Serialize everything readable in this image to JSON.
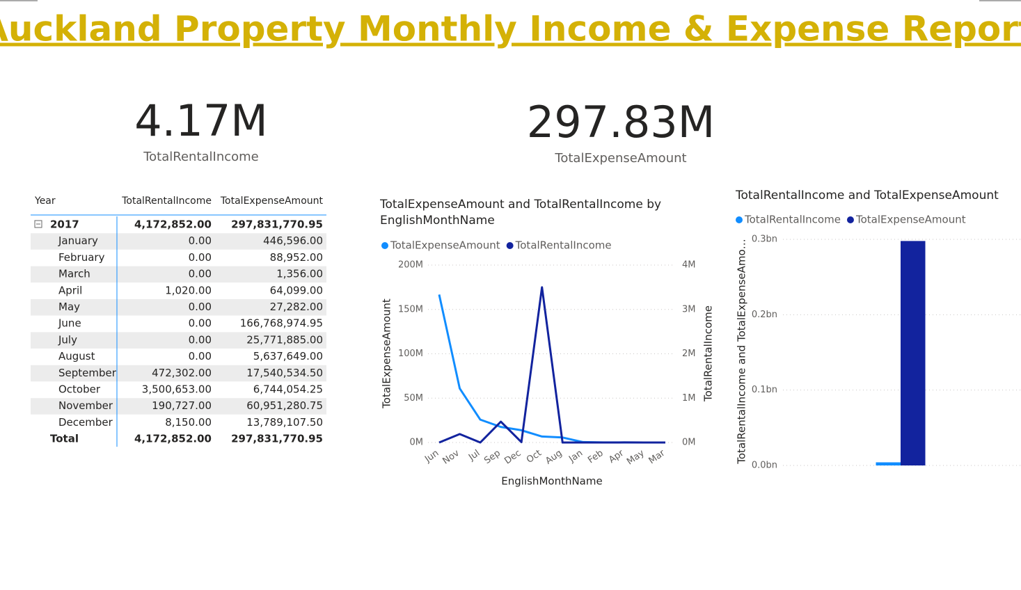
{
  "header": {
    "title": "Auckland Property Monthly Income & Expense Report"
  },
  "cards": [
    {
      "value": "4.17M",
      "label": "TotalRentalIncome"
    },
    {
      "value": "297.83M",
      "label": "TotalExpenseAmount"
    }
  ],
  "table": {
    "columns": [
      "Year",
      "TotalRentalIncome",
      "TotalExpenseAmount"
    ],
    "rows": [
      [
        "2017",
        "4,172,852.00",
        "297,831,770.95"
      ],
      [
        "January",
        "0.00",
        "446,596.00"
      ],
      [
        "February",
        "0.00",
        "88,952.00"
      ],
      [
        "March",
        "0.00",
        "1,356.00"
      ],
      [
        "April",
        "1,020.00",
        "64,099.00"
      ],
      [
        "May",
        "0.00",
        "27,282.00"
      ],
      [
        "June",
        "0.00",
        "166,768,974.95"
      ],
      [
        "July",
        "0.00",
        "25,771,885.00"
      ],
      [
        "August",
        "0.00",
        "5,637,649.00"
      ],
      [
        "September",
        "472,302.00",
        "17,540,534.50"
      ],
      [
        "October",
        "3,500,653.00",
        "6,744,054.25"
      ],
      [
        "November",
        "190,727.00",
        "60,951,280.75"
      ],
      [
        "December",
        "8,150.00",
        "13,789,107.50"
      ]
    ],
    "total": [
      "Total",
      "4,172,852.00",
      "297,831,770.95"
    ]
  },
  "chart_data": [
    {
      "type": "line",
      "title": "TotalExpenseAmount and TotalRentalIncome by EnglishMonthName",
      "x_label": "EnglishMonthName",
      "y_label": "TotalExpenseAmount",
      "y2_label": "TotalRentalIncome",
      "categories": [
        "Jun",
        "Nov",
        "Jul",
        "Sep",
        "Dec",
        "Oct",
        "Aug",
        "Jan",
        "Feb",
        "Apr",
        "May",
        "Mar"
      ],
      "series": [
        {
          "name": "TotalExpenseAmount",
          "color": "#118dff",
          "values": [
            166.77,
            60.95,
            25.77,
            17.54,
            13.79,
            6.74,
            5.64,
            0.45,
            0.09,
            0.06,
            0.03,
            0.001
          ]
        },
        {
          "name": "TotalRentalIncome",
          "color": "#12239e",
          "axis": "y2",
          "values": [
            0,
            0.19,
            0,
            0.47,
            0.008,
            3.5,
            0,
            0,
            0,
            0.001,
            0,
            0
          ]
        }
      ],
      "ylim": [
        0,
        200
      ],
      "yticks": [
        {
          "value": 0,
          "label": "0M"
        },
        {
          "value": 50,
          "label": "50M"
        },
        {
          "value": 100,
          "label": "100M"
        },
        {
          "value": 150,
          "label": "150M"
        },
        {
          "value": 200,
          "label": "200M"
        }
      ],
      "y2lim": [
        0,
        4
      ],
      "y2ticks": [
        {
          "value": 0,
          "label": "0M"
        },
        {
          "value": 1,
          "label": "1M"
        },
        {
          "value": 2,
          "label": "2M"
        },
        {
          "value": 3,
          "label": "3M"
        },
        {
          "value": 4,
          "label": "4M"
        }
      ],
      "grid": true,
      "legend": "top-left"
    },
    {
      "type": "bar",
      "title": "TotalRentalIncome and TotalExpenseAmount",
      "y_label": "TotalRentalIncome and TotalExpenseAmo…",
      "categories": [
        null
      ],
      "series": [
        {
          "name": "TotalRentalIncome",
          "color": "#118dff",
          "values": [
            0.00417
          ]
        },
        {
          "name": "TotalExpenseAmount",
          "color": "#12239e",
          "values": [
            0.2978
          ]
        }
      ],
      "ylim": [
        0,
        0.3
      ],
      "yticks": [
        {
          "value": 0,
          "label": "0.0bn"
        },
        {
          "value": 0.1,
          "label": "0.1bn"
        },
        {
          "value": 0.2,
          "label": "0.2bn"
        },
        {
          "value": 0.3,
          "label": "0.3bn"
        }
      ],
      "grid": true,
      "legend": "top-left"
    }
  ]
}
